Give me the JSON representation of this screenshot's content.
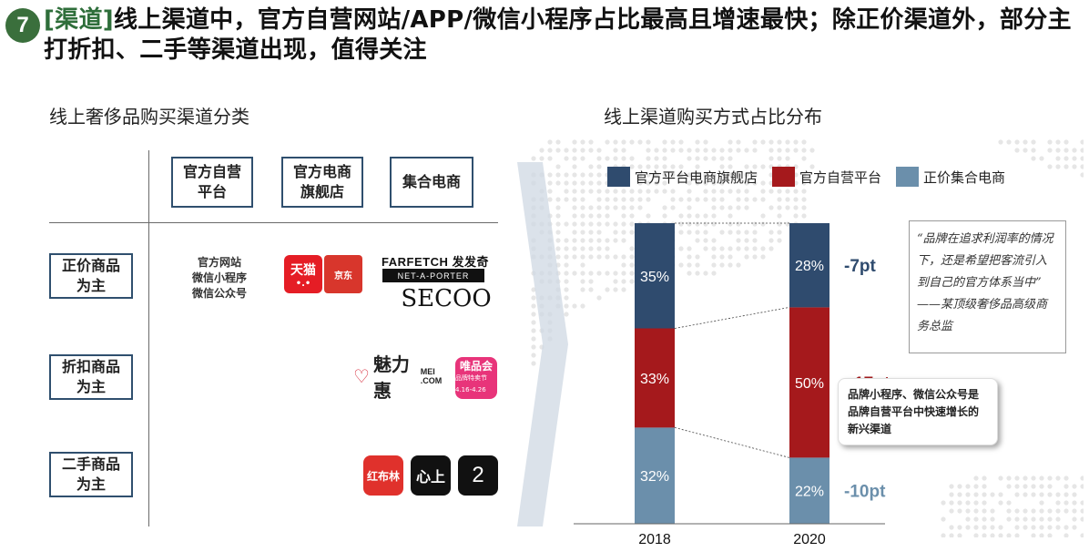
{
  "header": {
    "number": "7",
    "tag": "[渠道]",
    "title": "线上渠道中，官方自营网站/APP/微信小程序占比最高且增速最快；除正价渠道外，部分主打折扣、二手等渠道出现，值得关注"
  },
  "left": {
    "title": "线上奢侈品购买渠道分类",
    "columns": [
      "官方自营\n平台",
      "官方电商\n旗舰店",
      "集合电商"
    ],
    "rows": [
      "正价商品\n为主",
      "折扣商品\n为主",
      "二手商品\n为主"
    ],
    "official_channels": "官方网站\n微信小程序\n微信公众号",
    "logos": {
      "tmall": "天猫",
      "jd": "京东",
      "farfetch": "FARFETCH 发发奇",
      "net_a_porter": "NET-A-PORTER",
      "secoo": "SECOO",
      "meilihui": "魅力惠",
      "meilihui_sub": "MEI .COM",
      "vip": "唯品会",
      "vip_sub": "品牌特卖节 4.16-4.26",
      "redbook": "红布林",
      "xinshang": "心上",
      "two": "2"
    }
  },
  "right": {
    "title": "线上渠道购买方式占比分布",
    "quote": "“品牌在追求利润率的情况下，还是希望把客流引入到自己的官方体系当中”",
    "quote_author": "——某顶级奢侈品高级商务总监",
    "callout": "品牌小程序、微信公众号是品牌自营平台中快速增长的新兴渠道"
  },
  "colors": {
    "navy": "#2f4b6e",
    "red": "#a5191c",
    "steel": "#6b8fab",
    "green": "#3a6f3c"
  },
  "chart_data": {
    "type": "bar",
    "stacked": true,
    "percent": true,
    "categories": [
      "2018",
      "2020"
    ],
    "series": [
      {
        "name": "正价集合电商",
        "values": [
          32,
          22
        ],
        "color": "#6b8fab"
      },
      {
        "name": "官方自营平台",
        "values": [
          33,
          50
        ],
        "color": "#a5191c"
      },
      {
        "name": "官方平台电商旗舰店",
        "values": [
          35,
          28
        ],
        "color": "#2f4b6e"
      }
    ],
    "legend": [
      "官方平台电商旗舰店",
      "官方自营平台",
      "正价集合电商"
    ],
    "changes": [
      {
        "series": "官方平台电商旗舰店",
        "label": "-7pt",
        "color": "#2f4b6e"
      },
      {
        "series": "官方自营平台",
        "label": "+17pt",
        "color": "#a5191c"
      },
      {
        "series": "正价集合电商",
        "label": "-10pt",
        "color": "#6b8fab"
      }
    ],
    "ylim": [
      0,
      100
    ],
    "grid": false
  }
}
